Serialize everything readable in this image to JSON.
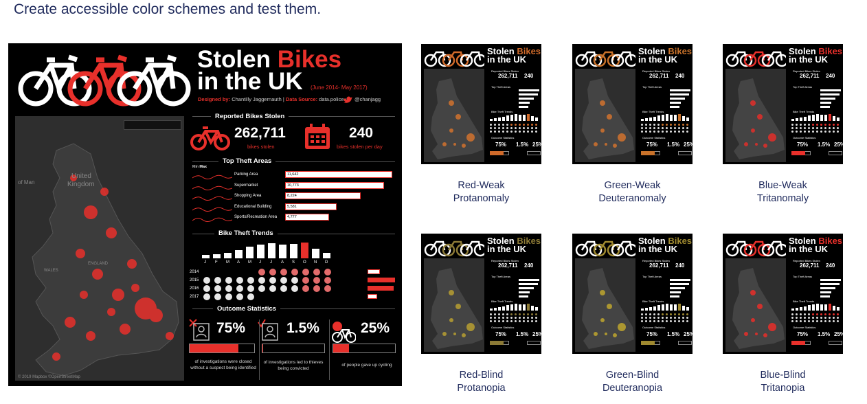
{
  "heading": "Create accessible color schemes and test them.",
  "main": {
    "title_a": "Stolen ",
    "title_b": "Bikes",
    "title_c": "in the UK",
    "dates": "(June 2014- May 2017)",
    "designed_label": "Designed by:",
    "designer": "Chantilly Jaggernauth",
    "source_label": "Data Source:",
    "source": "data.police.uk",
    "handle": "@chanjagg",
    "map_labels": [
      "United",
      "Kingdom",
      "of Man",
      "WALES",
      "ENGLAND"
    ],
    "map_attr": "© 2019 Mapbox ©OpenStreetMap",
    "reported_title": "Reported Bikes Stolen",
    "stolen_total": "262,711",
    "stolen_total_label": "bikes stolen",
    "per_day": "240",
    "per_day_label": "bikes stolen per day",
    "areas_title": "Top Theft Areas",
    "min_label": "Min",
    "max_label": "Max",
    "areas": [
      {
        "name": "Parking Area",
        "value": "11,642",
        "n": 11642
      },
      {
        "name": "Supermarket",
        "value": "10,773",
        "n": 10773
      },
      {
        "name": "Shopping Area",
        "value": "8,224",
        "n": 8224
      },
      {
        "name": "Educational Building",
        "value": "5,581",
        "n": 5581
      },
      {
        "name": "Sports/Recreation Area",
        "value": "4,777",
        "n": 4777
      }
    ],
    "trends_title": "Bike Theft Trends",
    "months": [
      "J",
      "F",
      "M",
      "A",
      "M",
      "J",
      "J",
      "A",
      "S",
      "O",
      "N",
      "D"
    ],
    "month_levels": [
      0.2,
      0.25,
      0.35,
      0.5,
      0.7,
      0.85,
      0.9,
      0.85,
      0.88,
      0.95,
      0.6,
      0.35
    ],
    "years": [
      "2014",
      "2015",
      "2016",
      "2017"
    ],
    "year_levels": [
      0.45,
      1.0,
      0.95,
      0.35
    ],
    "outcome_title": "Outcome Statistics",
    "outcomes": [
      {
        "pct": "75%",
        "fill": 0.75,
        "desc": "of investigations were closed without a suspect being identified"
      },
      {
        "pct": "1.5%",
        "fill": 0.015,
        "desc": "of investigations led to thieves being convicted"
      },
      {
        "pct": "25%",
        "fill": 0.25,
        "desc": "of people gave up cycling"
      }
    ]
  },
  "thumbs": [
    {
      "cap1": "Red-Weak",
      "cap2": "Protanomaly",
      "accent": "#d06a2a",
      "dots": "#c9702f"
    },
    {
      "cap1": "Green-Weak",
      "cap2": "Deuteranomaly",
      "accent": "#c9722a",
      "dots": "#c9702f"
    },
    {
      "cap1": "Blue-Weak",
      "cap2": "Tritanomaly",
      "accent": "#e8302b",
      "dots": "#d9302b"
    },
    {
      "cap1": "Red-Blind",
      "cap2": "Protanopia",
      "accent": "#8c7a36",
      "dots": "#b19a33"
    },
    {
      "cap1": "Green-Blind",
      "cap2": "Deuteranopia",
      "accent": "#a08a30",
      "dots": "#b8a02f"
    },
    {
      "cap1": "Blue-Blind",
      "cap2": "Tritanopia",
      "accent": "#e8302b",
      "dots": "#e0302b"
    }
  ],
  "thumb_text": {
    "t1": "Stolen ",
    "t1b": "Bikes",
    "t2": "in the UK",
    "num": "262,711",
    "num2": "240",
    "p1": "75%",
    "p2": "1.5%",
    "p3": "25%",
    "lbl_reported": "Reported Bikes Stolen",
    "lbl_areas": "Top Theft Areas",
    "lbl_trends": "Bike Theft Trends",
    "lbl_outcome": "Outcome Statistics"
  }
}
